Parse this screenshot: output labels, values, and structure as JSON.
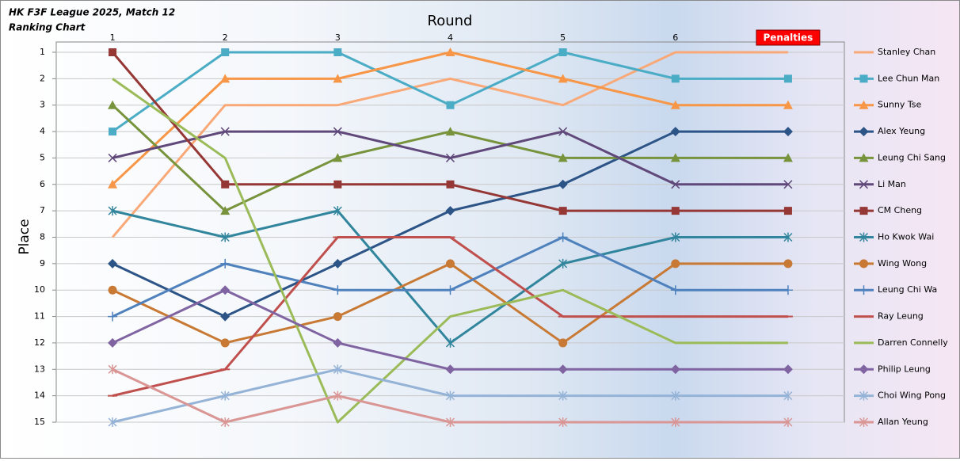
{
  "chart_data": {
    "type": "line",
    "title": "HK F3F League 2025, Match 12",
    "subtitle": "Ranking Chart",
    "x_label": "Round",
    "y_label": "Place",
    "categories": [
      "1",
      "2",
      "3",
      "4",
      "5",
      "6",
      "Penalties"
    ],
    "ylim": [
      15,
      1
    ],
    "yticks": [
      1,
      2,
      3,
      4,
      5,
      6,
      7,
      8,
      9,
      10,
      11,
      12,
      13,
      14,
      15
    ],
    "grid": true,
    "legend": "right",
    "series": [
      {
        "name": "Stanley Chan",
        "color": "#f9a978",
        "marker": "none",
        "values": [
          8,
          3,
          3,
          2,
          3,
          1,
          1
        ]
      },
      {
        "name": "Lee Chun Man",
        "color": "#4bacc6",
        "marker": "square",
        "values": [
          4,
          1,
          1,
          3,
          1,
          2,
          2
        ]
      },
      {
        "name": "Sunny Tse",
        "color": "#f79646",
        "marker": "triangle",
        "values": [
          6,
          2,
          2,
          1,
          2,
          3,
          3
        ]
      },
      {
        "name": "Alex Yeung",
        "color": "#2c5486",
        "marker": "diamond",
        "values": [
          9,
          11,
          9,
          7,
          6,
          4,
          4
        ]
      },
      {
        "name": "Leung Chi Sang",
        "color": "#77933c",
        "marker": "triangle",
        "values": [
          3,
          7,
          5,
          4,
          5,
          5,
          5
        ]
      },
      {
        "name": "Li Man",
        "color": "#60497a",
        "marker": "x",
        "values": [
          5,
          4,
          4,
          5,
          4,
          6,
          6
        ]
      },
      {
        "name": "CM Cheng",
        "color": "#953735",
        "marker": "square",
        "values": [
          1,
          6,
          6,
          6,
          7,
          7,
          7
        ]
      },
      {
        "name": "Ho Kwok Wai",
        "color": "#31859c",
        "marker": "star",
        "values": [
          7,
          8,
          7,
          12,
          9,
          8,
          8
        ]
      },
      {
        "name": "Wing Wong",
        "color": "#c87a35",
        "marker": "circle",
        "values": [
          10,
          12,
          11,
          9,
          12,
          9,
          9
        ]
      },
      {
        "name": "Leung Chi Wa",
        "color": "#4f81bd",
        "marker": "plus",
        "values": [
          11,
          9,
          10,
          10,
          8,
          10,
          10
        ]
      },
      {
        "name": "Ray Leung",
        "color": "#c0504d",
        "marker": "dash",
        "values": [
          14,
          13,
          8,
          8,
          11,
          11,
          11
        ]
      },
      {
        "name": "Darren Connelly",
        "color": "#9bbb59",
        "marker": "none",
        "values": [
          2,
          5,
          15,
          11,
          10,
          12,
          12
        ]
      },
      {
        "name": "Philip Leung",
        "color": "#8064a2",
        "marker": "diamond",
        "values": [
          12,
          10,
          12,
          13,
          13,
          13,
          13
        ]
      },
      {
        "name": "Choi Wing Pong",
        "color": "#95b3d7",
        "marker": "star",
        "values": [
          15,
          14,
          13,
          14,
          14,
          14,
          14
        ]
      },
      {
        "name": "Allan Yeung",
        "color": "#d99694",
        "marker": "star",
        "values": [
          13,
          15,
          14,
          15,
          15,
          15,
          15
        ]
      }
    ]
  }
}
